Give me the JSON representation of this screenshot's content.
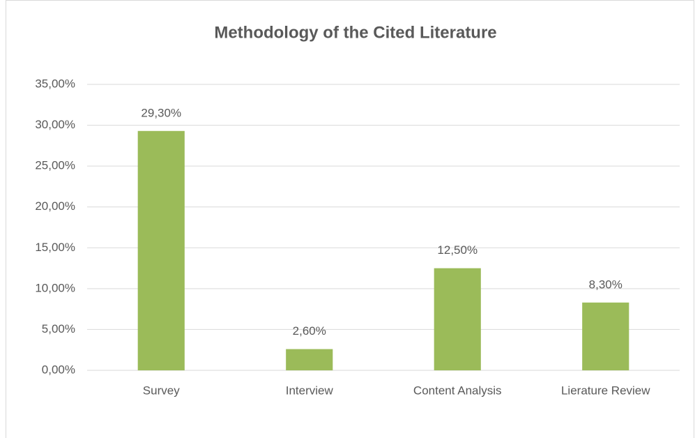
{
  "chart_data": {
    "type": "bar",
    "title": "Methodology of the Cited Literature",
    "categories": [
      "Survey",
      "Interview",
      "Content Analysis",
      "Lierature Review"
    ],
    "values": [
      29.3,
      2.6,
      12.5,
      8.3
    ],
    "value_labels": [
      "29,30%",
      "2,60%",
      "12,50%",
      "8,30%"
    ],
    "color": "#9bbb59",
    "ylim": [
      0,
      35
    ],
    "yticks": [
      {
        "value": 0,
        "label": "0,00%"
      },
      {
        "value": 5,
        "label": "5,00%"
      },
      {
        "value": 10,
        "label": "10,00%"
      },
      {
        "value": 15,
        "label": "15,00%"
      },
      {
        "value": 20,
        "label": "20,00%"
      },
      {
        "value": 25,
        "label": "25,00%"
      },
      {
        "value": 30,
        "label": "30,00%"
      },
      {
        "value": 35,
        "label": "35,00%"
      }
    ],
    "grid": true
  }
}
